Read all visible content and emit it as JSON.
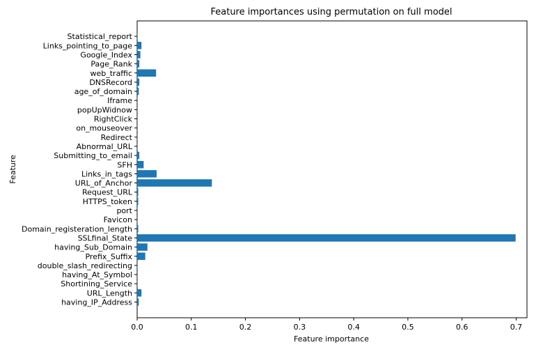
{
  "chart_data": {
    "type": "bar",
    "orientation": "horizontal",
    "title": "Feature importances using permutation on full model",
    "xlabel": "Feature importance",
    "ylabel": "Feature",
    "xlim": [
      0,
      0.72
    ],
    "xticks": [
      0,
      0.1,
      0.2,
      0.3,
      0.4,
      0.5,
      0.6,
      0.7
    ],
    "xtick_labels": [
      "0.0",
      "0.1",
      "0.2",
      "0.3",
      "0.4",
      "0.5",
      "0.6",
      "0.7"
    ],
    "grid": false,
    "legend": "none",
    "bar_color": "#1f77b4",
    "categories": [
      "having_IP_Address",
      "URL_Length",
      "Shortining_Service",
      "having_At_Symbol",
      "double_slash_redirecting",
      "Prefix_Suffix",
      "having_Sub_Domain",
      "SSLfinal_State",
      "Domain_registeration_length",
      "Favicon",
      "port",
      "HTTPS_token",
      "Request_URL",
      "URL_of_Anchor",
      "Links_in_tags",
      "SFH",
      "Submitting_to_email",
      "Abnormal_URL",
      "Redirect",
      "on_mouseover",
      "RightClick",
      "popUpWidnow",
      "Iframe",
      "age_of_domain",
      "DNSRecord",
      "web_traffic",
      "Page_Rank",
      "Google_Index",
      "Links_pointing_to_page",
      "Statistical_report"
    ],
    "values": [
      0.003,
      0.008,
      0.0003,
      0.0003,
      0.0003,
      0.015,
      0.019,
      0.699,
      0.002,
      0.0003,
      0.0003,
      0.002,
      0.002,
      0.138,
      0.036,
      0.012,
      0.004,
      0.0003,
      0.0003,
      0.0003,
      0.0003,
      0.0003,
      0.0003,
      0.003,
      0.004,
      0.035,
      0.004,
      0.006,
      0.008,
      0.0003
    ]
  }
}
